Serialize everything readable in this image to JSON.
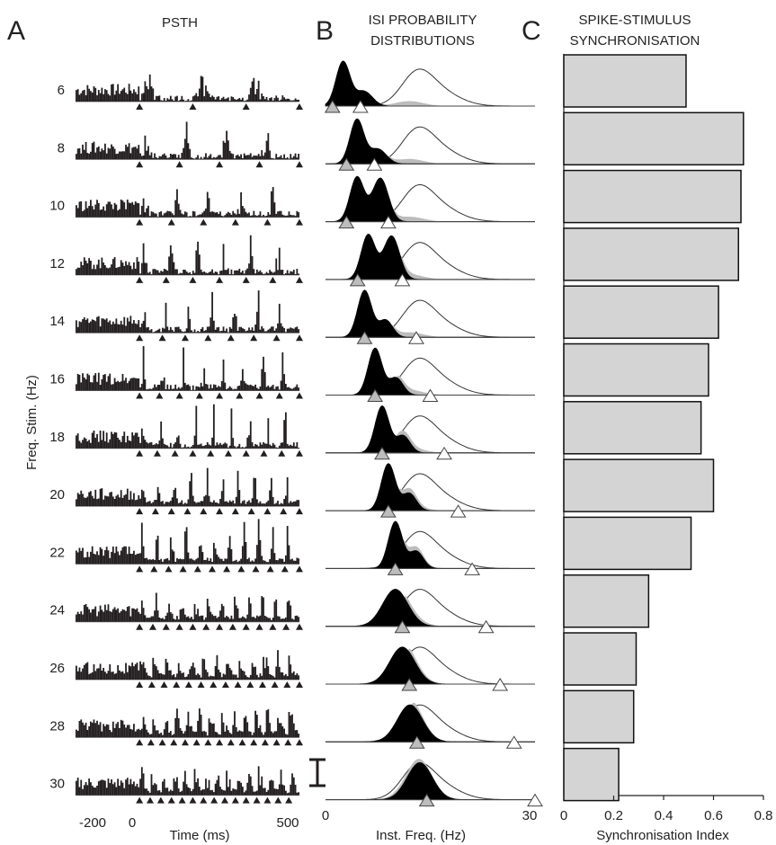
{
  "panels": {
    "A": {
      "letter": "A",
      "title": "PSTH",
      "ylabel": "Freq. Stim. (Hz)",
      "xlabel": "Time (ms)",
      "xticks": [
        "-200",
        "0",
        "500"
      ]
    },
    "B": {
      "letter": "B",
      "title_line1": "ISI PROBABILITY",
      "title_line2": "DISTRIBUTIONS",
      "xlabel": "Inst. Freq. (Hz)",
      "xticks": [
        "0",
        "30"
      ]
    },
    "C": {
      "letter": "C",
      "title_line1": "SPIKE-STIMULUS",
      "title_line2": "SYNCHRONISATION",
      "xlabel": "Synchronisation Index",
      "xticks": [
        "0",
        "0.2",
        "0.4",
        "0.6",
        "0.8"
      ]
    }
  },
  "colors": {
    "psth_bars": "#231f20",
    "isi_fill": "#000000",
    "shuffled_fill": "#bcbcbc",
    "index_bars": "#d4d4d4",
    "marker_gray": "#bdbdbd",
    "marker_white": "#ffffff"
  },
  "chart_data": [
    {
      "panel": "A",
      "type": "bar",
      "description": "Peri-stimulus time histograms for each stimulation frequency; triangles mark stimulus onsets",
      "xlim": [
        -200,
        500
      ],
      "stim_freqs": [
        6,
        8,
        10,
        12,
        14,
        16,
        18,
        20,
        22,
        24,
        26,
        28,
        30
      ],
      "row_labels": [
        "6",
        "8",
        "10",
        "12",
        "14",
        "16",
        "18",
        "20",
        "22",
        "24",
        "26",
        "28",
        "30"
      ],
      "stimulus_start_ms": 0,
      "stimulus_end_ms": 500
    },
    {
      "panel": "B",
      "type": "area",
      "description": "ISI (instantaneous frequency) probability distributions; black = recorded, white = control, gray = overlap",
      "xlim": [
        0,
        30
      ],
      "stim_freqs": [
        6,
        8,
        10,
        12,
        14,
        16,
        18,
        20,
        22,
        24,
        26,
        28,
        30
      ],
      "gray_marker_hz": [
        1,
        3,
        3,
        4.6,
        5.6,
        7.1,
        8.1,
        9,
        10,
        11,
        12,
        13.1,
        14.5
      ],
      "white_marker_hz": [
        5,
        7,
        9,
        11,
        13,
        15,
        17,
        19,
        21,
        23,
        25,
        27,
        30
      ]
    },
    {
      "panel": "C",
      "type": "bar",
      "orientation": "horizontal",
      "xlabel": "Synchronisation Index",
      "xlim": [
        0,
        0.8
      ],
      "categories": [
        "6",
        "8",
        "10",
        "12",
        "14",
        "16",
        "18",
        "20",
        "22",
        "24",
        "26",
        "28",
        "30"
      ],
      "values": [
        0.49,
        0.72,
        0.71,
        0.7,
        0.62,
        0.58,
        0.55,
        0.6,
        0.51,
        0.34,
        0.29,
        0.28,
        0.22
      ]
    }
  ]
}
